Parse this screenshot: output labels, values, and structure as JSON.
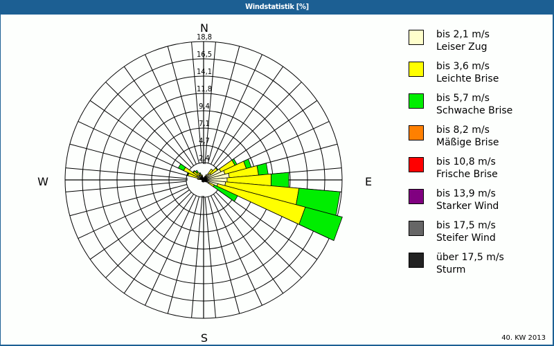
{
  "window": {
    "title": "Windstatistik [%]",
    "footer": "40. KW 2013"
  },
  "compass": {
    "north": "N",
    "east": "E",
    "south": "S",
    "west": "W"
  },
  "legend": [
    {
      "range": "bis 2,1 m/s",
      "name": "Leiser Zug",
      "color": "#ffffcc"
    },
    {
      "range": "bis 3,6 m/s",
      "name": "Leichte Brise",
      "color": "#ffff00"
    },
    {
      "range": "bis 5,7 m/s",
      "name": "Schwache Brise",
      "color": "#00ee00"
    },
    {
      "range": "bis 8,2 m/s",
      "name": "Mäßige Brise",
      "color": "#ff8000"
    },
    {
      "range": "bis 10,8 m/s",
      "name": "Frische Brise",
      "color": "#ff0000"
    },
    {
      "range": "bis 13,9 m/s",
      "name": "Starker Wind",
      "color": "#800080"
    },
    {
      "range": "bis 17,5 m/s",
      "name": "Steifer Wind",
      "color": "#666666"
    },
    {
      "range": "über 17,5 m/s",
      "name": "Sturm",
      "color": "#222222"
    }
  ],
  "chart_data": {
    "type": "polar-stacked-bar",
    "title": "Windstatistik [%]",
    "subtitle": "40. KW 2013",
    "radial_ticks": [
      "2,4",
      "4,7",
      "7,1",
      "9,4",
      "11,8",
      "14,1",
      "16,5",
      "18,8"
    ],
    "radial_max": 18.8,
    "sector_width_deg": 10,
    "series": [
      "bis 2,1 m/s",
      "bis 3,6 m/s",
      "bis 5,7 m/s",
      "bis 8,2 m/s",
      "bis 10,8 m/s",
      "bis 13,9 m/s",
      "bis 17,5 m/s",
      "über 17,5 m/s"
    ],
    "sectors": [
      {
        "dir": 40,
        "values": [
          1.0,
          0.8,
          0.0
        ]
      },
      {
        "dir": 50,
        "values": [
          1.2,
          1.1,
          0.1
        ]
      },
      {
        "dir": 60,
        "values": [
          2.6,
          2.1,
          0.3
        ]
      },
      {
        "dir": 70,
        "values": [
          3.0,
          3.0,
          0.7
        ]
      },
      {
        "dir": 80,
        "values": [
          3.5,
          4.0,
          1.3
        ]
      },
      {
        "dir": 90,
        "values": [
          3.2,
          6.0,
          2.4
        ]
      },
      {
        "dir": 100,
        "values": [
          3.0,
          10.0,
          5.6
        ]
      },
      {
        "dir": 110,
        "values": [
          2.0,
          12.3,
          5.2
        ]
      },
      {
        "dir": 120,
        "values": [
          0.8,
          0.8,
          3.5
        ]
      },
      {
        "dir": 130,
        "values": [
          0.3,
          0.1,
          0.0
        ]
      },
      {
        "dir": 140,
        "values": [
          0.3,
          0.0,
          0.0
        ]
      },
      {
        "dir": 150,
        "values": [
          0.2,
          0.0,
          0.0
        ]
      },
      {
        "dir": 160,
        "values": [
          0.2,
          0.0,
          0.0
        ]
      },
      {
        "dir": 170,
        "values": [
          0.2,
          0.0,
          0.0
        ]
      },
      {
        "dir": 180,
        "values": [
          0.3,
          0.0,
          0.0
        ]
      },
      {
        "dir": 190,
        "values": [
          0.2,
          0.0,
          0.0
        ]
      },
      {
        "dir": 200,
        "values": [
          0.2,
          0.0,
          0.0
        ]
      },
      {
        "dir": 210,
        "values": [
          0.3,
          0.0,
          0.0
        ]
      },
      {
        "dir": 220,
        "values": [
          0.3,
          0.0,
          0.0
        ]
      },
      {
        "dir": 230,
        "values": [
          0.3,
          0.0,
          0.0
        ]
      },
      {
        "dir": 240,
        "values": [
          0.2,
          0.0,
          0.0
        ]
      },
      {
        "dir": 250,
        "values": [
          0.2,
          0.0,
          0.0
        ]
      },
      {
        "dir": 260,
        "values": [
          0.2,
          0.0,
          0.0
        ]
      },
      {
        "dir": 270,
        "values": [
          0.2,
          0.0,
          0.0
        ]
      },
      {
        "dir": 280,
        "values": [
          0.4,
          0.4,
          0.0
        ]
      },
      {
        "dir": 290,
        "values": [
          0.8,
          1.4,
          0.1
        ]
      },
      {
        "dir": 300,
        "values": [
          1.0,
          2.0,
          0.8
        ]
      },
      {
        "dir": 310,
        "values": [
          0.8,
          0.9,
          0.1
        ]
      },
      {
        "dir": 320,
        "values": [
          0.8,
          0.5,
          0.3
        ]
      },
      {
        "dir": 330,
        "values": [
          0.6,
          0.3,
          0.2
        ]
      },
      {
        "dir": 340,
        "values": [
          0.5,
          0.2,
          0.0
        ]
      },
      {
        "dir": 350,
        "values": [
          0.3,
          0.0,
          0.0
        ]
      },
      {
        "dir": 0,
        "values": [
          0.3,
          0.0,
          0.0
        ]
      },
      {
        "dir": 10,
        "values": [
          0.3,
          0.0,
          0.0
        ]
      },
      {
        "dir": 20,
        "values": [
          0.5,
          0.0,
          0.0
        ]
      },
      {
        "dir": 30,
        "values": [
          0.6,
          0.2,
          0.0
        ]
      }
    ]
  }
}
